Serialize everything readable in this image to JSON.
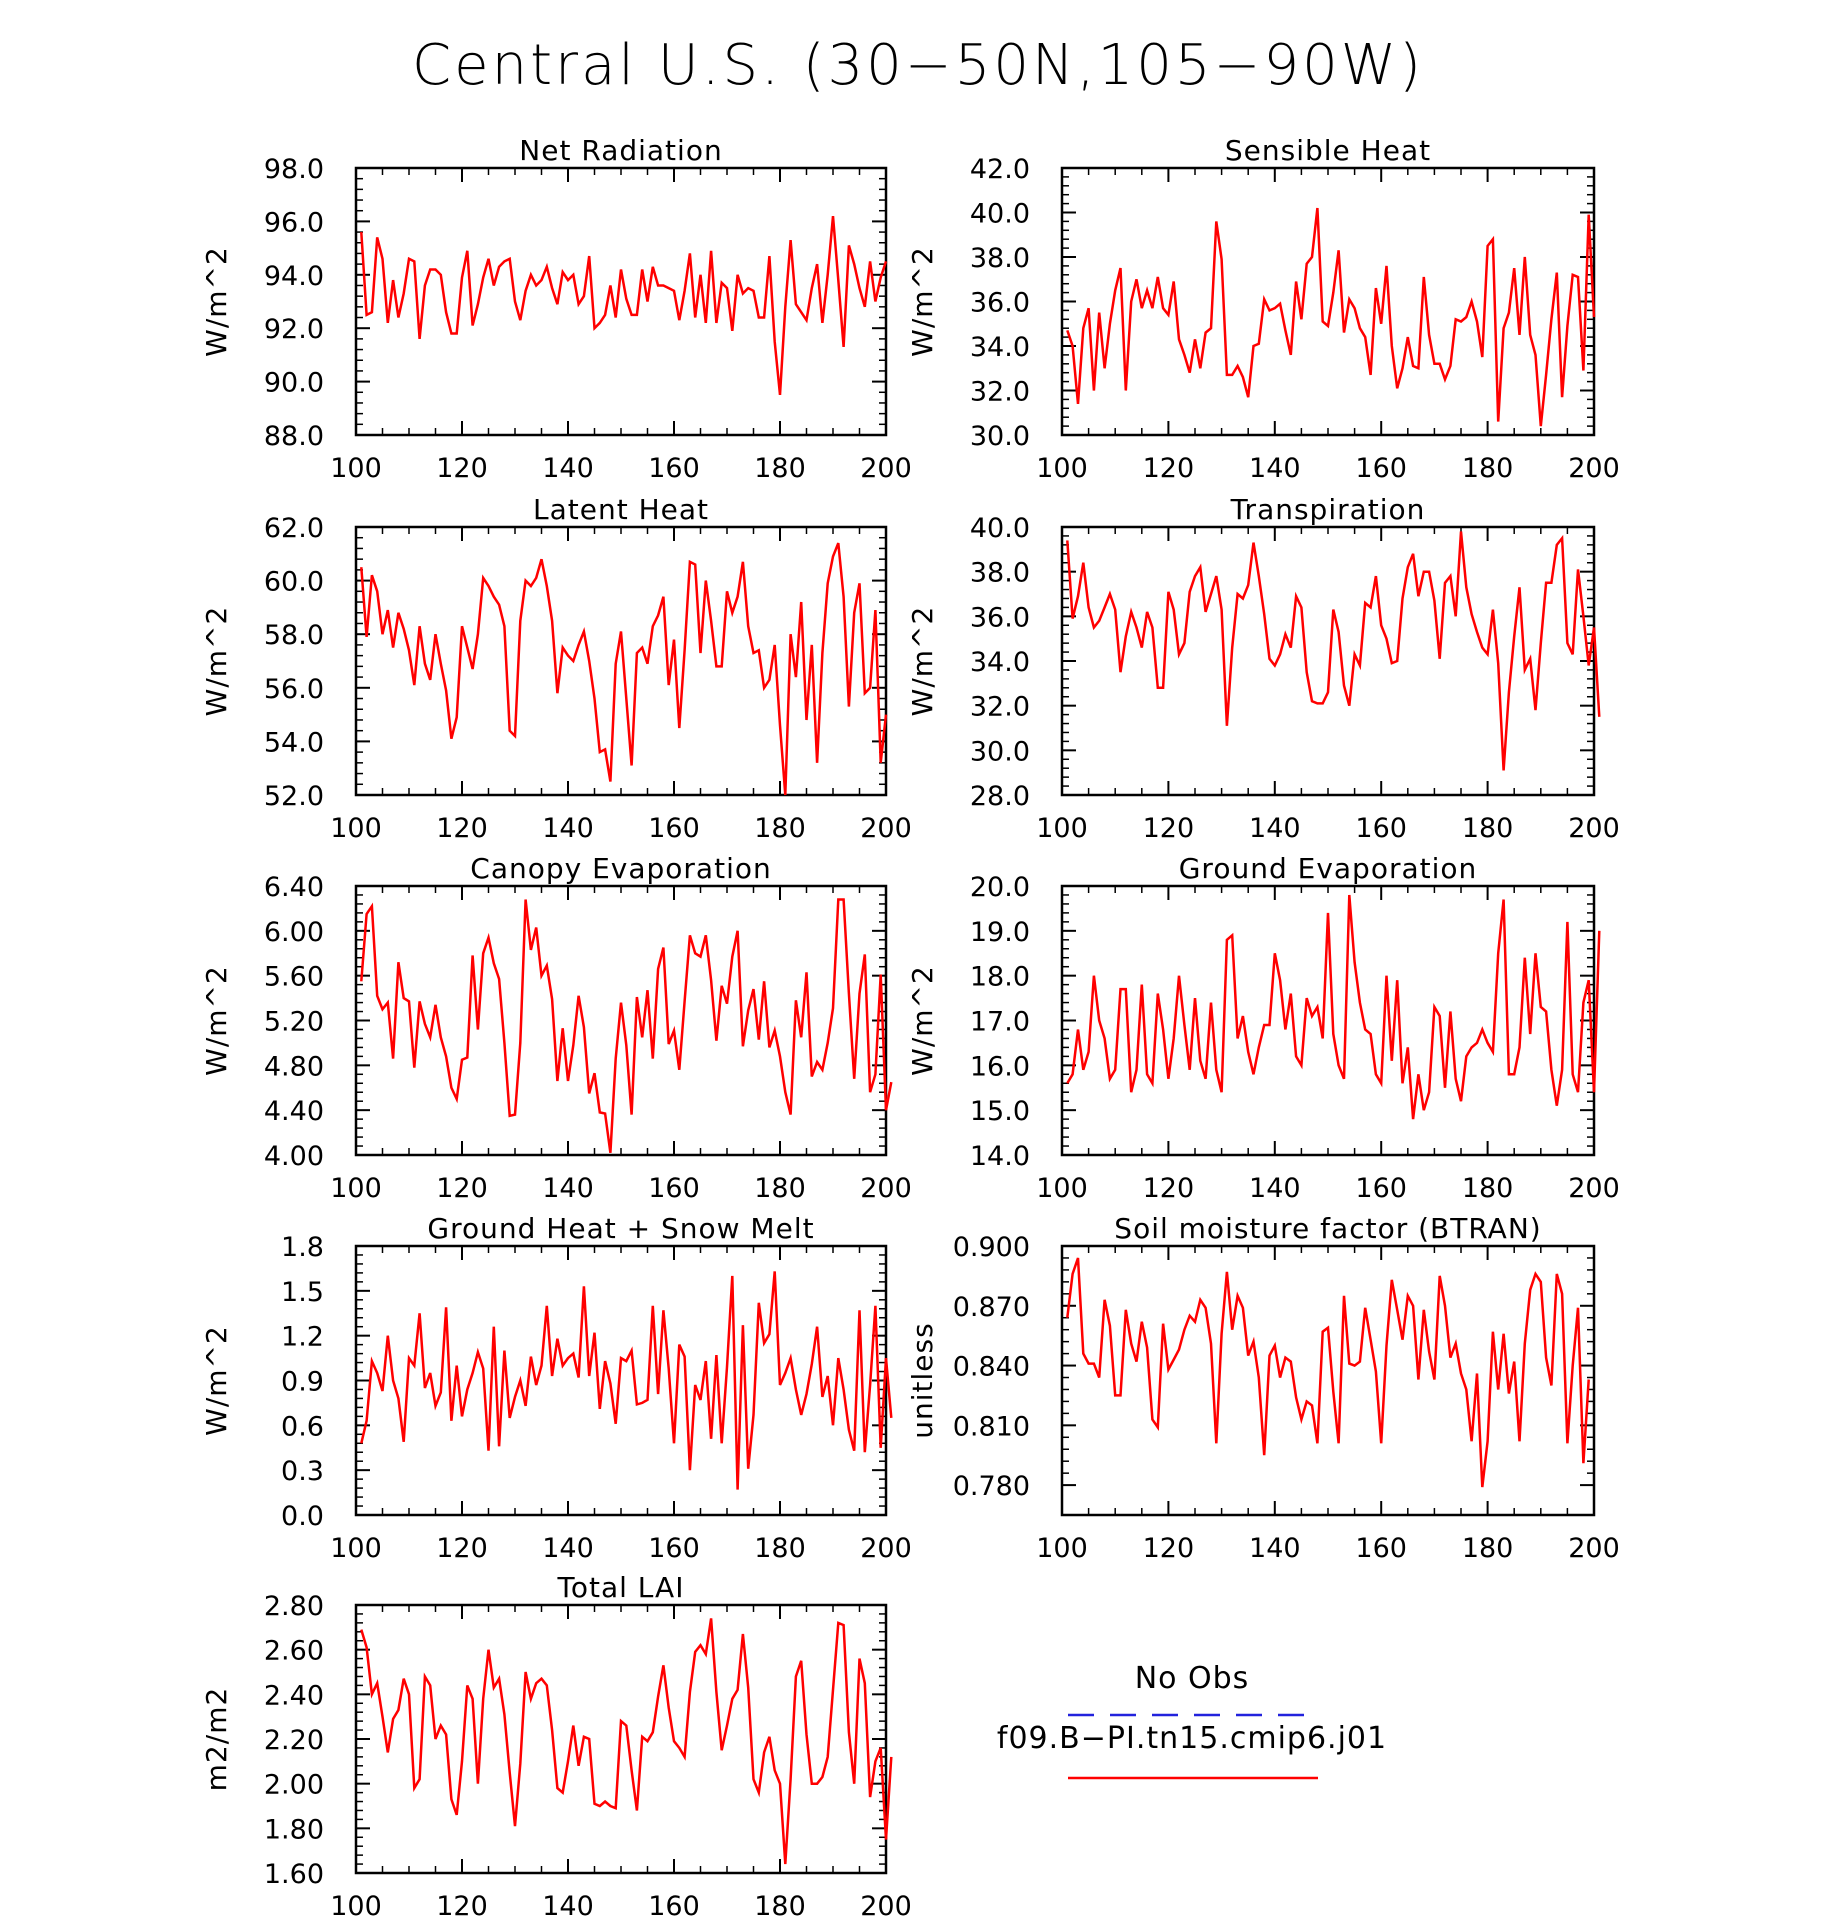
{
  "figure": {
    "title": "Central U.S. (30−50N,105−90W)",
    "legend": {
      "entries": [
        {
          "label": "No Obs",
          "color": "#2222dd",
          "style": "dashed"
        },
        {
          "label": "f09.B−PI.tn15.cmip6.j01",
          "color": "#ff0000",
          "style": "solid"
        }
      ]
    }
  },
  "chart_data": [
    {
      "type": "line",
      "title": "Net Radiation",
      "ylabel": "W/m^2",
      "xlim": [
        100,
        200
      ],
      "ylim": [
        88.0,
        98.0
      ],
      "xticks": [
        100,
        120,
        140,
        160,
        180,
        200
      ],
      "xtick_labels": [
        "100",
        "120",
        "140",
        "160",
        "180",
        "200"
      ],
      "yticks": [
        88.0,
        90.0,
        92.0,
        94.0,
        96.0,
        98.0
      ],
      "ytick_labels": [
        "88.0",
        "90.0",
        "92.0",
        "94.0",
        "96.0",
        "98.0"
      ],
      "color": "#ff0000",
      "x_start": 101,
      "values": [
        95.6,
        92.5,
        92.6,
        95.4,
        94.6,
        92.2,
        93.8,
        92.4,
        93.3,
        94.6,
        94.5,
        91.6,
        93.6,
        94.2,
        94.2,
        94.0,
        92.6,
        91.8,
        91.8,
        93.9,
        94.9,
        92.1,
        92.9,
        93.9,
        94.6,
        93.6,
        94.3,
        94.5,
        94.6,
        93.0,
        92.3,
        93.4,
        94.0,
        93.6,
        93.8,
        94.3,
        93.5,
        92.9,
        94.1,
        93.8,
        94.0,
        92.9,
        93.2,
        94.7,
        92.0,
        92.2,
        92.5,
        93.6,
        92.4,
        94.2,
        93.1,
        92.5,
        92.5,
        94.2,
        93.0,
        94.3,
        93.6,
        93.6,
        93.5,
        93.4,
        92.3,
        93.4,
        94.8,
        92.4,
        94.0,
        92.2,
        94.9,
        92.2,
        93.7,
        93.5,
        91.9,
        94.0,
        93.3,
        93.5,
        93.4,
        92.4,
        92.4,
        94.7,
        91.5,
        89.5,
        92.8,
        95.3,
        92.9,
        92.6,
        92.3,
        93.5,
        94.4,
        92.2,
        94.0,
        96.2,
        93.8,
        91.3,
        95.1,
        94.4,
        93.5,
        92.8,
        94.5,
        93.0,
        93.9,
        94.5
      ]
    },
    {
      "type": "line",
      "title": "Sensible Heat",
      "ylabel": "W/m^2",
      "xlim": [
        100,
        200
      ],
      "ylim": [
        30.0,
        42.0
      ],
      "xticks": [
        100,
        120,
        140,
        160,
        180,
        200
      ],
      "xtick_labels": [
        "100",
        "120",
        "140",
        "160",
        "180",
        "200"
      ],
      "yticks": [
        30.0,
        32.0,
        34.0,
        36.0,
        38.0,
        40.0,
        42.0
      ],
      "ytick_labels": [
        "30.0",
        "32.0",
        "34.0",
        "36.0",
        "38.0",
        "40.0",
        "42.0"
      ],
      "color": "#ff0000",
      "x_start": 101,
      "values": [
        34.7,
        34.0,
        31.4,
        34.8,
        35.7,
        32.0,
        35.5,
        33.0,
        35.0,
        36.5,
        37.5,
        32.0,
        36.0,
        37.0,
        35.7,
        36.5,
        35.7,
        37.1,
        35.7,
        35.4,
        36.9,
        34.3,
        33.6,
        32.8,
        34.3,
        33.0,
        34.6,
        34.8,
        39.6,
        37.9,
        32.7,
        32.7,
        33.1,
        32.6,
        31.7,
        34.0,
        34.1,
        36.1,
        35.6,
        35.7,
        35.9,
        34.7,
        33.6,
        36.9,
        35.2,
        37.7,
        38.0,
        40.2,
        35.1,
        34.9,
        36.4,
        38.3,
        34.6,
        36.1,
        35.7,
        34.8,
        34.4,
        32.7,
        36.6,
        35.0,
        37.6,
        34.0,
        32.1,
        33.0,
        34.4,
        33.1,
        33.0,
        37.1,
        34.5,
        33.2,
        33.2,
        32.5,
        33.1,
        35.2,
        35.1,
        35.3,
        36.0,
        35.1,
        33.5,
        38.5,
        38.8,
        30.6,
        34.8,
        35.5,
        37.5,
        34.5,
        38.0,
        34.5,
        33.6,
        30.4,
        32.7,
        35.2,
        37.3,
        31.7,
        34.9,
        37.2,
        37.1,
        32.9,
        39.9,
        35.3
      ]
    },
    {
      "type": "line",
      "title": "Latent Heat",
      "ylabel": "W/m^2",
      "xlim": [
        100,
        200
      ],
      "ylim": [
        52.0,
        62.0
      ],
      "xticks": [
        100,
        120,
        140,
        160,
        180,
        200
      ],
      "xtick_labels": [
        "100",
        "120",
        "140",
        "160",
        "180",
        "200"
      ],
      "yticks": [
        52.0,
        54.0,
        56.0,
        58.0,
        60.0,
        62.0
      ],
      "ytick_labels": [
        "52.0",
        "54.0",
        "56.0",
        "58.0",
        "60.0",
        "62.0"
      ],
      "color": "#ff0000",
      "x_start": 101,
      "values": [
        60.5,
        57.9,
        60.2,
        59.6,
        58.0,
        58.9,
        57.5,
        58.8,
        58.2,
        57.4,
        56.1,
        58.3,
        56.9,
        56.3,
        58.0,
        56.9,
        55.9,
        54.1,
        54.9,
        58.3,
        57.5,
        56.7,
        58.0,
        60.1,
        59.8,
        59.4,
        59.1,
        58.3,
        54.4,
        54.2,
        58.5,
        60.0,
        59.8,
        60.1,
        60.8,
        59.8,
        58.5,
        55.8,
        57.5,
        57.2,
        57.0,
        57.6,
        58.1,
        57.0,
        55.6,
        53.6,
        53.7,
        52.5,
        56.9,
        58.1,
        55.6,
        53.1,
        57.3,
        57.5,
        56.9,
        58.3,
        58.7,
        59.4,
        56.1,
        57.8,
        54.5,
        57.4,
        60.7,
        60.6,
        57.3,
        60.0,
        58.5,
        56.8,
        56.8,
        59.6,
        58.8,
        59.4,
        60.7,
        58.3,
        57.3,
        57.4,
        56.0,
        56.3,
        57.6,
        54.6,
        51.9,
        58.0,
        56.4,
        59.2,
        54.8,
        57.6,
        53.2,
        57.3,
        59.9,
        60.9,
        61.4,
        59.4,
        55.3,
        58.8,
        59.9,
        55.8,
        56.0,
        58.9,
        53.2,
        55.0
      ]
    },
    {
      "type": "line",
      "title": "Transpiration",
      "ylabel": "W/m^2",
      "xlim": [
        100,
        200
      ],
      "ylim": [
        28.0,
        40.0
      ],
      "xticks": [
        100,
        120,
        140,
        160,
        180,
        200
      ],
      "xtick_labels": [
        "100",
        "120",
        "140",
        "160",
        "180",
        "200"
      ],
      "yticks": [
        28.0,
        30.0,
        32.0,
        34.0,
        36.0,
        38.0,
        40.0
      ],
      "ytick_labels": [
        "28.0",
        "30.0",
        "32.0",
        "34.0",
        "36.0",
        "38.0",
        "40.0"
      ],
      "color": "#ff0000",
      "x_start": 101,
      "values": [
        39.4,
        35.9,
        36.9,
        38.4,
        36.4,
        35.5,
        35.8,
        36.4,
        37.0,
        36.3,
        33.5,
        35.1,
        36.2,
        35.5,
        34.6,
        36.2,
        35.5,
        32.8,
        32.8,
        37.1,
        36.3,
        34.3,
        34.8,
        37.1,
        37.8,
        38.2,
        36.2,
        37.0,
        37.8,
        36.3,
        31.1,
        34.6,
        37.0,
        36.8,
        37.4,
        39.3,
        37.8,
        36.1,
        34.1,
        33.8,
        34.3,
        35.2,
        34.6,
        36.9,
        36.4,
        33.5,
        32.2,
        32.1,
        32.1,
        32.6,
        36.3,
        35.3,
        32.9,
        32.0,
        34.3,
        33.8,
        36.6,
        36.4,
        37.8,
        35.6,
        35.0,
        33.9,
        34.0,
        36.8,
        38.2,
        38.8,
        36.9,
        38.0,
        38.0,
        36.7,
        34.1,
        37.5,
        37.8,
        36.0,
        39.8,
        37.3,
        36.1,
        35.3,
        34.6,
        34.3,
        36.3,
        33.9,
        29.1,
        32.6,
        35.1,
        37.3,
        33.6,
        34.1,
        31.8,
        34.8,
        37.5,
        37.5,
        39.2,
        39.5,
        34.8,
        34.3,
        38.1,
        36.0,
        33.8,
        35.5,
        31.5
      ]
    },
    {
      "type": "line",
      "title": "Canopy Evaporation",
      "ylabel": "W/m^2",
      "xlim": [
        100,
        200
      ],
      "ylim": [
        4.0,
        6.4
      ],
      "xticks": [
        100,
        120,
        140,
        160,
        180,
        200
      ],
      "xtick_labels": [
        "100",
        "120",
        "140",
        "160",
        "180",
        "200"
      ],
      "yticks": [
        4.0,
        4.4,
        4.8,
        5.2,
        5.6,
        6.0,
        6.4
      ],
      "ytick_labels": [
        "4.00",
        "4.40",
        "4.80",
        "5.20",
        "5.60",
        "6.00",
        "6.40"
      ],
      "color": "#ff0000",
      "x_start": 101,
      "values": [
        5.55,
        6.15,
        6.22,
        5.42,
        5.3,
        5.36,
        4.86,
        5.72,
        5.4,
        5.37,
        4.78,
        5.37,
        5.17,
        5.05,
        5.34,
        5.05,
        4.88,
        4.6,
        4.5,
        4.85,
        4.87,
        5.78,
        5.12,
        5.8,
        5.94,
        5.71,
        5.57,
        5.0,
        4.35,
        4.36,
        5.0,
        6.28,
        5.83,
        6.03,
        5.6,
        5.69,
        5.39,
        4.66,
        5.13,
        4.66,
        4.98,
        5.42,
        5.14,
        4.55,
        4.73,
        4.38,
        4.37,
        4.02,
        4.86,
        5.36,
        4.98,
        4.36,
        5.41,
        5.05,
        5.47,
        4.86,
        5.66,
        5.85,
        4.99,
        5.11,
        4.76,
        5.37,
        5.96,
        5.8,
        5.77,
        5.96,
        5.56,
        5.02,
        5.51,
        5.35,
        5.77,
        6.0,
        4.97,
        5.29,
        5.48,
        5.03,
        5.55,
        4.96,
        5.11,
        4.88,
        4.56,
        4.36,
        5.38,
        5.05,
        5.63,
        4.7,
        4.83,
        4.76,
        5.0,
        5.31,
        6.28,
        6.28,
        5.44,
        4.68,
        5.44,
        5.79,
        4.56,
        4.72,
        5.61,
        4.4,
        4.65
      ]
    },
    {
      "type": "line",
      "title": "Ground Evaporation",
      "ylabel": "W/m^2",
      "xlim": [
        100,
        200
      ],
      "ylim": [
        14.0,
        20.0
      ],
      "xticks": [
        100,
        120,
        140,
        160,
        180,
        200
      ],
      "xtick_labels": [
        "100",
        "120",
        "140",
        "160",
        "180",
        "200"
      ],
      "yticks": [
        14.0,
        15.0,
        16.0,
        17.0,
        18.0,
        19.0,
        20.0
      ],
      "ytick_labels": [
        "14.0",
        "15.0",
        "16.0",
        "17.0",
        "18.0",
        "19.0",
        "20.0"
      ],
      "color": "#ff0000",
      "x_start": 101,
      "values": [
        15.6,
        15.8,
        16.8,
        15.9,
        16.3,
        18.0,
        17.0,
        16.6,
        15.7,
        15.9,
        17.7,
        17.7,
        15.4,
        15.9,
        17.8,
        15.8,
        15.6,
        17.6,
        16.8,
        15.7,
        16.6,
        18.0,
        16.9,
        15.9,
        17.5,
        16.1,
        15.7,
        17.4,
        15.9,
        15.4,
        18.8,
        18.9,
        16.6,
        17.1,
        16.3,
        15.8,
        16.4,
        16.9,
        16.9,
        18.5,
        17.9,
        16.8,
        17.6,
        16.2,
        16.0,
        17.5,
        17.1,
        17.3,
        16.6,
        19.4,
        16.7,
        16.0,
        15.7,
        19.8,
        18.3,
        17.4,
        16.8,
        16.7,
        15.8,
        15.6,
        18.0,
        16.1,
        17.9,
        15.6,
        16.4,
        14.8,
        15.8,
        15.0,
        15.4,
        17.3,
        17.1,
        15.5,
        17.2,
        15.7,
        15.2,
        16.2,
        16.4,
        16.5,
        16.8,
        16.5,
        16.3,
        18.5,
        19.7,
        15.8,
        15.8,
        16.4,
        18.4,
        16.7,
        18.5,
        17.3,
        17.2,
        15.9,
        15.1,
        15.9,
        19.2,
        15.8,
        15.4,
        17.4,
        17.9,
        15.4,
        19.0
      ]
    },
    {
      "type": "line",
      "title": "Ground Heat + Snow Melt",
      "ylabel": "W/m^2",
      "xlim": [
        100,
        200
      ],
      "ylim": [
        0.0,
        1.8
      ],
      "xticks": [
        100,
        120,
        140,
        160,
        180,
        200
      ],
      "xtick_labels": [
        "100",
        "120",
        "140",
        "160",
        "180",
        "200"
      ],
      "yticks": [
        0.0,
        0.3,
        0.6,
        0.9,
        1.2,
        1.5,
        1.8
      ],
      "ytick_labels": [
        "0.0",
        "0.3",
        "0.6",
        "0.9",
        "1.2",
        "1.5",
        "1.8"
      ],
      "color": "#ff0000",
      "x_start": 101,
      "values": [
        0.48,
        0.63,
        1.03,
        0.95,
        0.83,
        1.2,
        0.9,
        0.78,
        0.49,
        1.05,
        1.0,
        1.35,
        0.85,
        0.95,
        0.73,
        0.82,
        1.39,
        0.63,
        1.0,
        0.66,
        0.84,
        0.95,
        1.09,
        0.98,
        0.43,
        1.26,
        0.46,
        1.1,
        0.65,
        0.79,
        0.9,
        0.73,
        1.06,
        0.87,
        1.0,
        1.4,
        0.93,
        1.18,
        1.0,
        1.05,
        1.08,
        0.92,
        1.53,
        0.93,
        1.22,
        0.71,
        1.03,
        0.88,
        0.61,
        1.05,
        1.03,
        1.1,
        0.74,
        0.75,
        0.77,
        1.4,
        0.81,
        1.37,
        0.98,
        0.48,
        1.14,
        1.06,
        0.3,
        0.87,
        0.77,
        1.03,
        0.51,
        1.07,
        0.48,
        0.99,
        1.6,
        0.17,
        1.27,
        0.31,
        0.67,
        1.42,
        1.15,
        1.21,
        1.63,
        0.87,
        0.95,
        1.05,
        0.84,
        0.67,
        0.81,
        1.01,
        1.26,
        0.79,
        0.93,
        0.6,
        1.05,
        0.84,
        0.57,
        0.43,
        1.37,
        0.42,
        0.87,
        1.4,
        0.45,
        1.05,
        0.65
      ]
    },
    {
      "type": "line",
      "title": "Soil moisture factor (BTRAN)",
      "ylabel": "unitless",
      "xlim": [
        100,
        200
      ],
      "ylim": [
        0.765,
        0.9
      ],
      "xticks": [
        100,
        120,
        140,
        160,
        180,
        200
      ],
      "xtick_labels": [
        "100",
        "120",
        "140",
        "160",
        "180",
        "200"
      ],
      "yticks": [
        0.78,
        0.81,
        0.84,
        0.87,
        0.9
      ],
      "ytick_labels": [
        "0.780",
        "0.810",
        "0.840",
        "0.870",
        "0.900"
      ],
      "color": "#ff0000",
      "x_start": 101,
      "values": [
        0.864,
        0.886,
        0.894,
        0.846,
        0.841,
        0.841,
        0.834,
        0.873,
        0.86,
        0.825,
        0.825,
        0.868,
        0.851,
        0.842,
        0.862,
        0.849,
        0.813,
        0.809,
        0.861,
        0.838,
        0.843,
        0.848,
        0.858,
        0.865,
        0.862,
        0.873,
        0.869,
        0.851,
        0.801,
        0.856,
        0.887,
        0.858,
        0.875,
        0.869,
        0.845,
        0.852,
        0.834,
        0.795,
        0.845,
        0.85,
        0.834,
        0.844,
        0.842,
        0.824,
        0.813,
        0.822,
        0.82,
        0.801,
        0.857,
        0.859,
        0.827,
        0.801,
        0.875,
        0.841,
        0.84,
        0.842,
        0.869,
        0.853,
        0.837,
        0.801,
        0.85,
        0.883,
        0.868,
        0.853,
        0.875,
        0.87,
        0.833,
        0.868,
        0.847,
        0.833,
        0.885,
        0.87,
        0.844,
        0.851,
        0.836,
        0.828,
        0.802,
        0.836,
        0.779,
        0.802,
        0.857,
        0.828,
        0.856,
        0.826,
        0.842,
        0.802,
        0.851,
        0.878,
        0.886,
        0.882,
        0.844,
        0.83,
        0.886,
        0.876,
        0.801,
        0.84,
        0.869,
        0.791,
        0.833
      ]
    },
    {
      "type": "line",
      "title": "Total LAI",
      "ylabel": "m2/m2",
      "xlim": [
        100,
        200
      ],
      "ylim": [
        1.6,
        2.8
      ],
      "xticks": [
        100,
        120,
        140,
        160,
        180,
        200
      ],
      "xtick_labels": [
        "100",
        "120",
        "140",
        "160",
        "180",
        "200"
      ],
      "yticks": [
        1.6,
        1.8,
        2.0,
        2.2,
        2.4,
        2.6,
        2.8
      ],
      "ytick_labels": [
        "1.60",
        "1.80",
        "2.00",
        "2.20",
        "2.40",
        "2.60",
        "2.80"
      ],
      "color": "#ff0000",
      "x_start": 101,
      "values": [
        2.69,
        2.61,
        2.4,
        2.45,
        2.3,
        2.14,
        2.29,
        2.33,
        2.47,
        2.4,
        1.98,
        2.02,
        2.48,
        2.44,
        2.2,
        2.26,
        2.22,
        1.93,
        1.86,
        2.1,
        2.44,
        2.38,
        2.0,
        2.38,
        2.6,
        2.43,
        2.47,
        2.31,
        2.05,
        1.81,
        2.09,
        2.5,
        2.38,
        2.45,
        2.47,
        2.44,
        2.24,
        1.98,
        1.96,
        2.1,
        2.26,
        2.08,
        2.21,
        2.2,
        1.91,
        1.9,
        1.92,
        1.9,
        1.89,
        2.28,
        2.26,
        2.06,
        1.88,
        2.21,
        2.19,
        2.23,
        2.39,
        2.53,
        2.34,
        2.19,
        2.16,
        2.12,
        2.41,
        2.59,
        2.62,
        2.58,
        2.74,
        2.41,
        2.15,
        2.26,
        2.38,
        2.42,
        2.67,
        2.43,
        2.02,
        1.96,
        2.14,
        2.21,
        2.06,
        2.0,
        1.64,
        2.02,
        2.48,
        2.55,
        2.22,
        2.0,
        2.0,
        2.03,
        2.12,
        2.42,
        2.72,
        2.71,
        2.23,
        2.0,
        2.56,
        2.45,
        1.94,
        2.1,
        2.16,
        1.75,
        2.12
      ]
    }
  ]
}
